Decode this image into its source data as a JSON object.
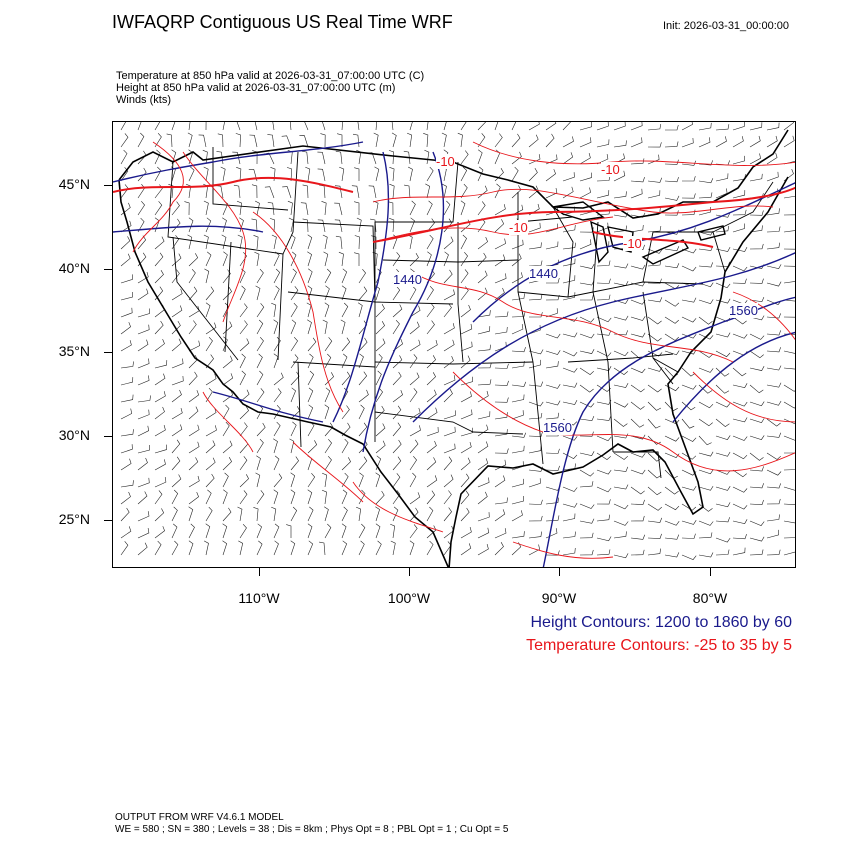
{
  "header": {
    "title": "IWFAQRP Contiguous US Real Time WRF",
    "init": "Init: 2026-03-31_00:00:00",
    "lines": [
      "Temperature at 850 hPa valid at 2026-03-31_07:00:00 UTC   (C)",
      "Height at 850 hPa valid at 2026-03-31_07:00:00 UTC   (m)",
      "Winds   (kts)"
    ]
  },
  "axes": {
    "lat_labels": [
      "45°N",
      "40°N",
      "35°N",
      "30°N",
      "25°N"
    ],
    "lon_labels": [
      "110°W",
      "100°W",
      "90°W",
      "80°W"
    ]
  },
  "map_labels": {
    "height": [
      "1440",
      "1440",
      "1560",
      "1560"
    ],
    "temperature": [
      "-10",
      "-10",
      "-10",
      "-10"
    ]
  },
  "legend": {
    "height": "Height Contours: 1200 to 1860 by 60",
    "temperature": "Temperature Contours: -25 to 35 by 5"
  },
  "footer": {
    "line1": "OUTPUT FROM WRF V4.6.1 MODEL",
    "line2": "WE = 580 ; SN = 380 ; Levels = 38 ; Dis = 8km ; Phys Opt = 8 ; PBL Opt = 1 ; Cu Opt = 5"
  },
  "colors": {
    "height_contour": "#1a1a8c",
    "temperature_contour": "#e8161b",
    "boundary": "#000000"
  }
}
